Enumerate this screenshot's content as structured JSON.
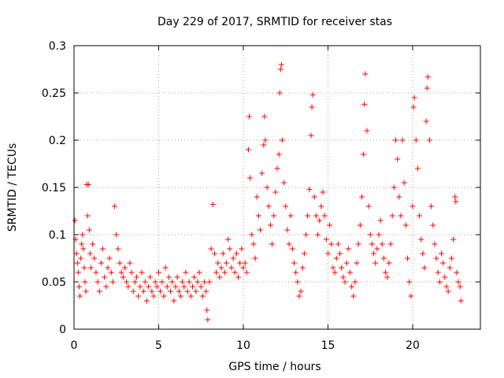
{
  "chart_data": {
    "type": "scatter",
    "title": "Day 229 of 2017, SRMTID for receiver stas",
    "xlabel": "GPS time / hours",
    "ylabel": "SRMTID / TECUs",
    "xlim": [
      0,
      24
    ],
    "ylim": [
      0,
      0.3
    ],
    "x_ticks": [
      {
        "value": 0,
        "label": "0"
      },
      {
        "value": 5,
        "label": "5"
      },
      {
        "value": 10,
        "label": "10"
      },
      {
        "value": 15,
        "label": "15"
      },
      {
        "value": 20,
        "label": "20"
      }
    ],
    "y_ticks": [
      {
        "value": 0,
        "label": "0"
      },
      {
        "value": 0.05,
        "label": "0.05"
      },
      {
        "value": 0.1,
        "label": "0.1"
      },
      {
        "value": 0.15,
        "label": "0.15"
      },
      {
        "value": 0.2,
        "label": "0.2"
      },
      {
        "value": 0.25,
        "label": "0.25"
      },
      {
        "value": 0.3,
        "label": "0.3"
      }
    ],
    "grid": true,
    "marker": "+",
    "series": [
      {
        "name": "stas",
        "color": "#ff0000",
        "points": [
          [
            0.05,
            0.115
          ],
          [
            0.1,
            0.095
          ],
          [
            0.15,
            0.08
          ],
          [
            0.2,
            0.07
          ],
          [
            0.25,
            0.06
          ],
          [
            0.3,
            0.045
          ],
          [
            0.35,
            0.035
          ],
          [
            0.4,
            0.075
          ],
          [
            0.45,
            0.09
          ],
          [
            0.5,
            0.1
          ],
          [
            0.55,
            0.085
          ],
          [
            0.6,
            0.065
          ],
          [
            0.65,
            0.05
          ],
          [
            0.7,
            0.04
          ],
          [
            0.75,
            0.153
          ],
          [
            0.8,
            0.12
          ],
          [
            0.85,
            0.153
          ],
          [
            0.9,
            0.105
          ],
          [
            0.95,
            0.08
          ],
          [
            1.0,
            0.065
          ],
          [
            1.1,
            0.09
          ],
          [
            1.2,
            0.075
          ],
          [
            1.3,
            0.06
          ],
          [
            1.4,
            0.05
          ],
          [
            1.5,
            0.04
          ],
          [
            1.6,
            0.07
          ],
          [
            1.7,
            0.085
          ],
          [
            1.8,
            0.055
          ],
          [
            1.9,
            0.045
          ],
          [
            2.0,
            0.065
          ],
          [
            2.1,
            0.075
          ],
          [
            2.2,
            0.06
          ],
          [
            2.3,
            0.05
          ],
          [
            2.4,
            0.13
          ],
          [
            2.5,
            0.1
          ],
          [
            2.6,
            0.085
          ],
          [
            2.7,
            0.07
          ],
          [
            2.8,
            0.06
          ],
          [
            2.9,
            0.055
          ],
          [
            3.0,
            0.065
          ],
          [
            3.1,
            0.05
          ],
          [
            3.2,
            0.045
          ],
          [
            3.3,
            0.07
          ],
          [
            3.4,
            0.06
          ],
          [
            3.5,
            0.04
          ],
          [
            3.6,
            0.05
          ],
          [
            3.7,
            0.055
          ],
          [
            3.8,
            0.035
          ],
          [
            3.9,
            0.045
          ],
          [
            4.0,
            0.06
          ],
          [
            4.1,
            0.04
          ],
          [
            4.2,
            0.05
          ],
          [
            4.3,
            0.03
          ],
          [
            4.4,
            0.045
          ],
          [
            4.5,
            0.055
          ],
          [
            4.6,
            0.04
          ],
          [
            4.7,
            0.035
          ],
          [
            4.8,
            0.05
          ],
          [
            4.9,
            0.045
          ],
          [
            5.0,
            0.06
          ],
          [
            5.1,
            0.04
          ],
          [
            5.2,
            0.05
          ],
          [
            5.3,
            0.035
          ],
          [
            5.4,
            0.065
          ],
          [
            5.5,
            0.045
          ],
          [
            5.6,
            0.055
          ],
          [
            5.7,
            0.04
          ],
          [
            5.8,
            0.05
          ],
          [
            5.9,
            0.03
          ],
          [
            6.0,
            0.045
          ],
          [
            6.1,
            0.055
          ],
          [
            6.2,
            0.04
          ],
          [
            6.3,
            0.035
          ],
          [
            6.4,
            0.05
          ],
          [
            6.5,
            0.045
          ],
          [
            6.6,
            0.06
          ],
          [
            6.7,
            0.04
          ],
          [
            6.8,
            0.05
          ],
          [
            6.9,
            0.035
          ],
          [
            7.0,
            0.045
          ],
          [
            7.1,
            0.055
          ],
          [
            7.2,
            0.04
          ],
          [
            7.3,
            0.05
          ],
          [
            7.4,
            0.06
          ],
          [
            7.5,
            0.045
          ],
          [
            7.6,
            0.035
          ],
          [
            7.7,
            0.05
          ],
          [
            7.8,
            0.04
          ],
          [
            7.85,
            0.02
          ],
          [
            7.9,
            0.01
          ],
          [
            8.0,
            0.05
          ],
          [
            8.1,
            0.085
          ],
          [
            8.2,
            0.132
          ],
          [
            8.3,
            0.08
          ],
          [
            8.4,
            0.06
          ],
          [
            8.5,
            0.07
          ],
          [
            8.6,
            0.055
          ],
          [
            8.7,
            0.065
          ],
          [
            8.8,
            0.08
          ],
          [
            8.9,
            0.06
          ],
          [
            9.0,
            0.07
          ],
          [
            9.1,
            0.095
          ],
          [
            9.2,
            0.085
          ],
          [
            9.3,
            0.065
          ],
          [
            9.4,
            0.075
          ],
          [
            9.5,
            0.06
          ],
          [
            9.6,
            0.08
          ],
          [
            9.7,
            0.055
          ],
          [
            9.8,
            0.07
          ],
          [
            9.9,
            0.085
          ],
          [
            10.0,
            0.065
          ],
          [
            10.1,
            0.07
          ],
          [
            10.2,
            0.06
          ],
          [
            10.3,
            0.19
          ],
          [
            10.35,
            0.225
          ],
          [
            10.4,
            0.16
          ],
          [
            10.5,
            0.1
          ],
          [
            10.6,
            0.09
          ],
          [
            10.7,
            0.075
          ],
          [
            10.8,
            0.14
          ],
          [
            10.9,
            0.12
          ],
          [
            11.0,
            0.105
          ],
          [
            11.1,
            0.165
          ],
          [
            11.2,
            0.195
          ],
          [
            11.25,
            0.225
          ],
          [
            11.3,
            0.2
          ],
          [
            11.4,
            0.15
          ],
          [
            11.5,
            0.13
          ],
          [
            11.6,
            0.11
          ],
          [
            11.7,
            0.09
          ],
          [
            11.8,
            0.12
          ],
          [
            11.9,
            0.145
          ],
          [
            12.0,
            0.17
          ],
          [
            12.1,
            0.185
          ],
          [
            12.15,
            0.25
          ],
          [
            12.2,
            0.275
          ],
          [
            12.25,
            0.28
          ],
          [
            12.3,
            0.2
          ],
          [
            12.4,
            0.155
          ],
          [
            12.5,
            0.13
          ],
          [
            12.6,
            0.105
          ],
          [
            12.7,
            0.09
          ],
          [
            12.8,
            0.12
          ],
          [
            12.9,
            0.085
          ],
          [
            13.0,
            0.07
          ],
          [
            13.1,
            0.06
          ],
          [
            13.2,
            0.05
          ],
          [
            13.3,
            0.035
          ],
          [
            13.4,
            0.04
          ],
          [
            13.5,
            0.065
          ],
          [
            13.6,
            0.08
          ],
          [
            13.7,
            0.1
          ],
          [
            13.8,
            0.12
          ],
          [
            13.9,
            0.148
          ],
          [
            14.0,
            0.205
          ],
          [
            14.05,
            0.235
          ],
          [
            14.1,
            0.248
          ],
          [
            14.2,
            0.14
          ],
          [
            14.3,
            0.12
          ],
          [
            14.4,
            0.1
          ],
          [
            14.5,
            0.115
          ],
          [
            14.6,
            0.13
          ],
          [
            14.7,
            0.145
          ],
          [
            14.8,
            0.12
          ],
          [
            14.9,
            0.095
          ],
          [
            15.0,
            0.08
          ],
          [
            15.1,
            0.11
          ],
          [
            15.2,
            0.09
          ],
          [
            15.3,
            0.065
          ],
          [
            15.4,
            0.06
          ],
          [
            15.5,
            0.075
          ],
          [
            15.6,
            0.09
          ],
          [
            15.7,
            0.08
          ],
          [
            15.8,
            0.065
          ],
          [
            15.9,
            0.055
          ],
          [
            16.0,
            0.05
          ],
          [
            16.1,
            0.07
          ],
          [
            16.2,
            0.085
          ],
          [
            16.3,
            0.06
          ],
          [
            16.4,
            0.045
          ],
          [
            16.5,
            0.035
          ],
          [
            16.6,
            0.05
          ],
          [
            16.7,
            0.07
          ],
          [
            16.8,
            0.09
          ],
          [
            16.9,
            0.11
          ],
          [
            17.0,
            0.14
          ],
          [
            17.1,
            0.185
          ],
          [
            17.15,
            0.238
          ],
          [
            17.2,
            0.27
          ],
          [
            17.3,
            0.21
          ],
          [
            17.4,
            0.13
          ],
          [
            17.5,
            0.1
          ],
          [
            17.6,
            0.09
          ],
          [
            17.7,
            0.08
          ],
          [
            17.8,
            0.07
          ],
          [
            17.9,
            0.085
          ],
          [
            18.0,
            0.1
          ],
          [
            18.1,
            0.115
          ],
          [
            18.2,
            0.09
          ],
          [
            18.3,
            0.075
          ],
          [
            18.4,
            0.06
          ],
          [
            18.5,
            0.055
          ],
          [
            18.6,
            0.07
          ],
          [
            18.7,
            0.09
          ],
          [
            18.8,
            0.12
          ],
          [
            18.9,
            0.15
          ],
          [
            19.0,
            0.2
          ],
          [
            19.1,
            0.18
          ],
          [
            19.2,
            0.14
          ],
          [
            19.3,
            0.12
          ],
          [
            19.4,
            0.2
          ],
          [
            19.5,
            0.155
          ],
          [
            19.6,
            0.11
          ],
          [
            19.7,
            0.075
          ],
          [
            19.8,
            0.05
          ],
          [
            19.9,
            0.035
          ],
          [
            20.0,
            0.13
          ],
          [
            20.05,
            0.235
          ],
          [
            20.1,
            0.245
          ],
          [
            20.2,
            0.2
          ],
          [
            20.3,
            0.17
          ],
          [
            20.4,
            0.12
          ],
          [
            20.5,
            0.095
          ],
          [
            20.6,
            0.08
          ],
          [
            20.7,
            0.065
          ],
          [
            20.8,
            0.22
          ],
          [
            20.85,
            0.255
          ],
          [
            20.9,
            0.267
          ],
          [
            21.0,
            0.2
          ],
          [
            21.1,
            0.13
          ],
          [
            21.2,
            0.11
          ],
          [
            21.3,
            0.09
          ],
          [
            21.4,
            0.075
          ],
          [
            21.5,
            0.06
          ],
          [
            21.6,
            0.05
          ],
          [
            21.7,
            0.08
          ],
          [
            21.8,
            0.07
          ],
          [
            21.9,
            0.055
          ],
          [
            22.0,
            0.045
          ],
          [
            22.1,
            0.04
          ],
          [
            22.2,
            0.065
          ],
          [
            22.3,
            0.075
          ],
          [
            22.4,
            0.095
          ],
          [
            22.5,
            0.14
          ],
          [
            22.55,
            0.135
          ],
          [
            22.6,
            0.06
          ],
          [
            22.7,
            0.05
          ],
          [
            22.8,
            0.045
          ],
          [
            22.85,
            0.03
          ]
        ]
      }
    ]
  }
}
